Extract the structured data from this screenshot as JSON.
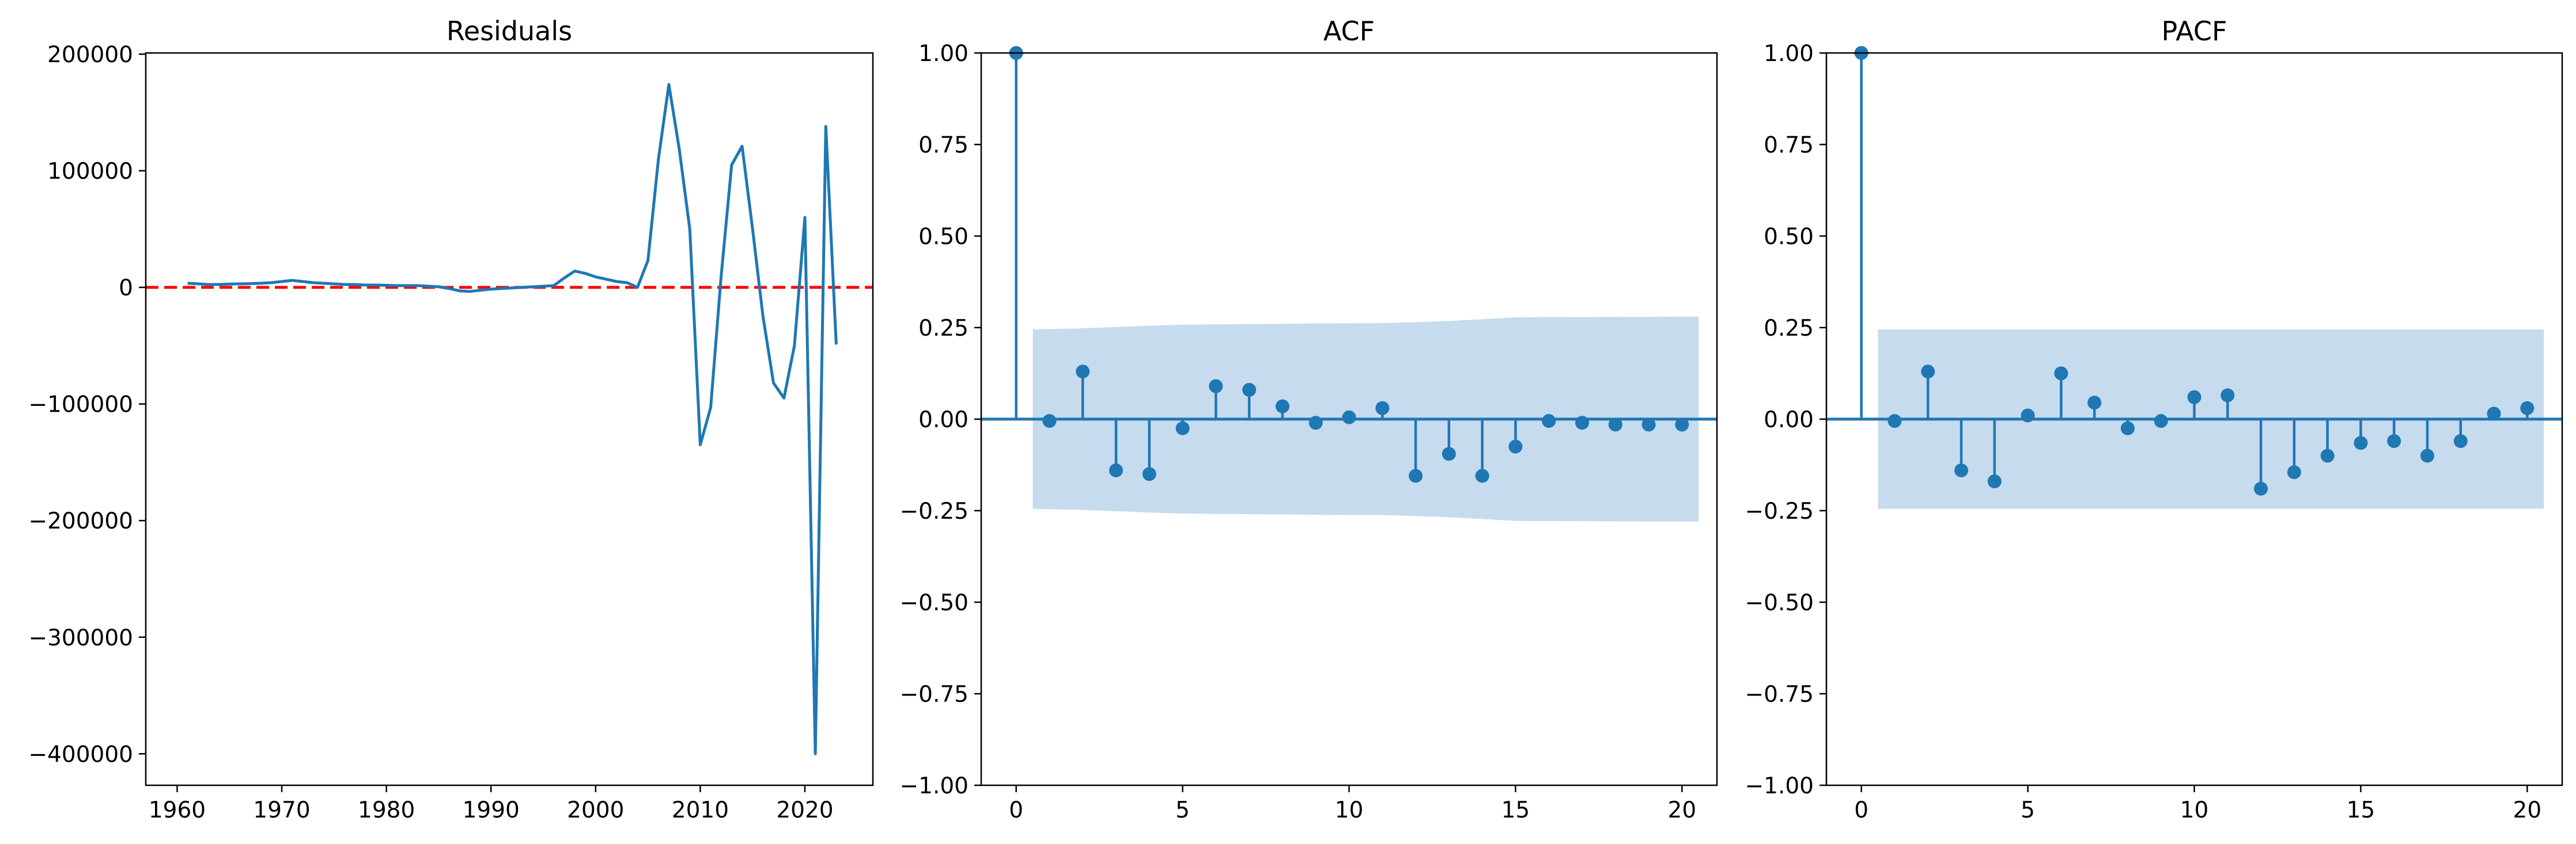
{
  "colors": {
    "line": "#1f77b4",
    "zero_line": "#ff0000",
    "band": "#c6dbee",
    "axes": "#000000"
  },
  "chart_data": [
    {
      "type": "line",
      "title": "Residuals",
      "xlabel": "",
      "ylabel": "",
      "xlim": [
        1957,
        2026.5
      ],
      "ylim": [
        -427000,
        201000
      ],
      "xticks": [
        1960,
        1970,
        1980,
        1990,
        2000,
        2010,
        2020
      ],
      "yticks": [
        {
          "value": 200000,
          "label": "200000"
        },
        {
          "value": 100000,
          "label": "100000"
        },
        {
          "value": 0,
          "label": "0"
        },
        {
          "value": -100000,
          "label": "−100000"
        },
        {
          "value": -200000,
          "label": "−200000"
        },
        {
          "value": -300000,
          "label": "−300000"
        },
        {
          "value": -400000,
          "label": "−400000"
        }
      ],
      "reference_line": {
        "y": 0,
        "style": "dashed",
        "color": "#ff0000"
      },
      "x": [
        1961,
        1962,
        1963,
        1964,
        1965,
        1966,
        1967,
        1968,
        1969,
        1970,
        1971,
        1972,
        1973,
        1974,
        1975,
        1976,
        1977,
        1978,
        1979,
        1980,
        1981,
        1982,
        1983,
        1984,
        1985,
        1986,
        1987,
        1988,
        1989,
        1990,
        1991,
        1992,
        1993,
        1994,
        1995,
        1996,
        1997,
        1998,
        1999,
        2000,
        2001,
        2002,
        2003,
        2004,
        2005,
        2006,
        2007,
        2008,
        2009,
        2010,
        2011,
        2012,
        2013,
        2014,
        2015,
        2016,
        2017,
        2018,
        2019,
        2020,
        2021,
        2022,
        2023
      ],
      "y": [
        3500,
        3000,
        2500,
        2500,
        2800,
        3000,
        3200,
        3500,
        4000,
        5000,
        6000,
        5000,
        4000,
        3500,
        3000,
        2500,
        2500,
        2000,
        2000,
        1800,
        1500,
        1500,
        1500,
        1000,
        500,
        -1000,
        -3000,
        -3500,
        -2500,
        -1500,
        -1000,
        -500,
        0,
        500,
        1000,
        1500,
        8000,
        14000,
        12000,
        9000,
        7000,
        5000,
        4000,
        0,
        23000,
        110000,
        174000,
        118000,
        50000,
        -135000,
        -103000,
        10000,
        105000,
        121000,
        50000,
        -25000,
        -82000,
        -95000,
        -50000,
        60000,
        -400000,
        138000,
        -49000
      ]
    },
    {
      "type": "stem",
      "title": "ACF",
      "xlabel": "",
      "ylabel": "",
      "xlim": [
        -1.05,
        21.05
      ],
      "ylim": [
        -1.0,
        1.0
      ],
      "xticks": [
        0,
        5,
        10,
        15,
        20
      ],
      "yticks": [
        {
          "value": 1.0,
          "label": "1.00"
        },
        {
          "value": 0.75,
          "label": "0.75"
        },
        {
          "value": 0.5,
          "label": "0.50"
        },
        {
          "value": 0.25,
          "label": "0.25"
        },
        {
          "value": 0.0,
          "label": "0.00"
        },
        {
          "value": -0.25,
          "label": "−0.25"
        },
        {
          "value": -0.5,
          "label": "−0.50"
        },
        {
          "value": -0.75,
          "label": "−0.75"
        },
        {
          "value": -1.0,
          "label": "−1.00"
        }
      ],
      "lags": [
        0,
        1,
        2,
        3,
        4,
        5,
        6,
        7,
        8,
        9,
        10,
        11,
        12,
        13,
        14,
        15,
        16,
        17,
        18,
        19,
        20
      ],
      "values": [
        1.0,
        -0.005,
        0.13,
        -0.14,
        -0.15,
        -0.025,
        0.09,
        0.08,
        0.035,
        -0.01,
        0.005,
        0.03,
        -0.155,
        -0.095,
        -0.155,
        -0.075,
        -0.005,
        -0.01,
        -0.015,
        -0.015,
        -0.015
      ],
      "confidence_band": {
        "lags": [
          0.5,
          2,
          4,
          5,
          10,
          11,
          13,
          15,
          20.5
        ],
        "upper": [
          0.245,
          0.248,
          0.255,
          0.258,
          0.262,
          0.262,
          0.268,
          0.278,
          0.28
        ],
        "lower": [
          -0.245,
          -0.248,
          -0.255,
          -0.258,
          -0.262,
          -0.262,
          -0.268,
          -0.278,
          -0.28
        ]
      }
    },
    {
      "type": "stem",
      "title": "PACF",
      "xlabel": "",
      "ylabel": "",
      "xlim": [
        -1.05,
        21.05
      ],
      "ylim": [
        -1.0,
        1.0
      ],
      "xticks": [
        0,
        5,
        10,
        15,
        20
      ],
      "yticks": [
        {
          "value": 1.0,
          "label": "1.00"
        },
        {
          "value": 0.75,
          "label": "0.75"
        },
        {
          "value": 0.5,
          "label": "0.50"
        },
        {
          "value": 0.25,
          "label": "0.25"
        },
        {
          "value": 0.0,
          "label": "0.00"
        },
        {
          "value": -0.25,
          "label": "−0.25"
        },
        {
          "value": -0.5,
          "label": "−0.50"
        },
        {
          "value": -0.75,
          "label": "−0.75"
        },
        {
          "value": -1.0,
          "label": "−1.00"
        }
      ],
      "lags": [
        0,
        1,
        2,
        3,
        4,
        5,
        6,
        7,
        8,
        9,
        10,
        11,
        12,
        13,
        14,
        15,
        16,
        17,
        18,
        19,
        20
      ],
      "values": [
        1.0,
        -0.005,
        0.13,
        -0.14,
        -0.17,
        0.01,
        0.125,
        0.045,
        -0.025,
        -0.005,
        0.06,
        0.065,
        -0.19,
        -0.145,
        -0.1,
        -0.065,
        -0.06,
        -0.1,
        -0.06,
        0.015,
        0.03
      ],
      "confidence_band": {
        "lags": [
          0.5,
          20.5
        ],
        "upper": [
          0.245,
          0.245
        ],
        "lower": [
          -0.245,
          -0.245
        ]
      }
    }
  ]
}
